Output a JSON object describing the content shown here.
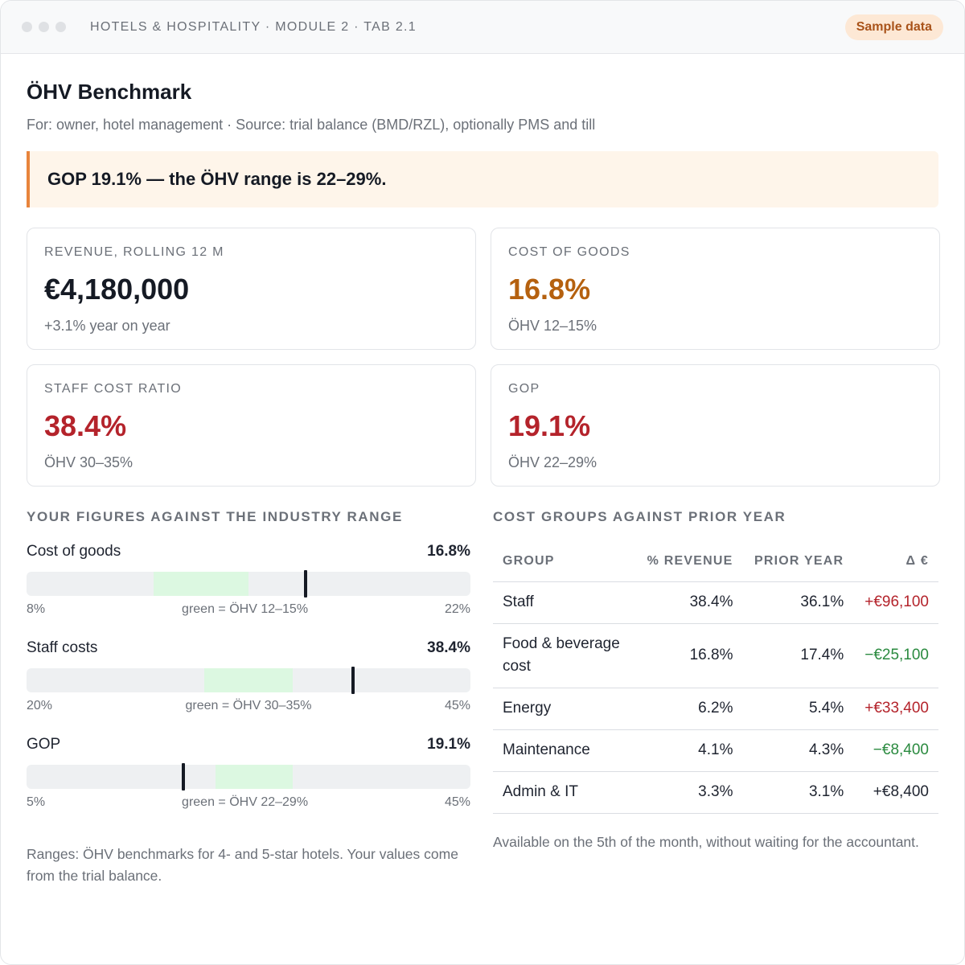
{
  "titlebar": {
    "breadcrumb": "HOTELS & HOSPITALITY · MODULE 2 · TAB 2.1",
    "badge": "Sample data"
  },
  "header": {
    "title": "ÖHV Benchmark",
    "subtitle": "For: owner, hotel management · Source: trial balance (BMD/RZL), optionally PMS and till"
  },
  "alert": {
    "text": "GOP 19.1% — the ÖHV range is 22–29%."
  },
  "kpis": [
    {
      "label": "REVENUE, ROLLING 12 M",
      "value": "€4,180,000",
      "note": "+3.1% year on year",
      "color": "#151a24"
    },
    {
      "label": "COST OF GOODS",
      "value": "16.8%",
      "note": "ÖHV 12–15%",
      "color": "#b5610f"
    },
    {
      "label": "STAFF COST RATIO",
      "value": "38.4%",
      "note": "ÖHV 30–35%",
      "color": "#b4232b"
    },
    {
      "label": "GOP",
      "value": "19.1%",
      "note": "ÖHV 22–29%",
      "color": "#b4232b"
    }
  ],
  "ranges": {
    "heading": "YOUR FIGURES AGAINST THE INDUSTRY RANGE",
    "items": [
      {
        "label": "Cost of goods",
        "value_text": "16.8%",
        "value": 16.8,
        "min": 8,
        "max": 22,
        "band": [
          12,
          15
        ],
        "min_label": "8%",
        "max_label": "22%",
        "legend": "green = ÖHV 12–15%"
      },
      {
        "label": "Staff costs",
        "value_text": "38.4%",
        "value": 38.4,
        "min": 20,
        "max": 45,
        "band": [
          30,
          35
        ],
        "min_label": "20%",
        "max_label": "45%",
        "legend": "green = ÖHV 30–35%"
      },
      {
        "label": "GOP",
        "value_text": "19.1%",
        "value": 19.1,
        "min": 5,
        "max": 45,
        "band": [
          22,
          29
        ],
        "min_label": "5%",
        "max_label": "45%",
        "legend": "green = ÖHV 22–29%"
      }
    ],
    "note": "Ranges: ÖHV benchmarks for 4- and 5-star hotels. Your values come from the trial balance."
  },
  "cost_groups": {
    "heading": "COST GROUPS AGAINST PRIOR YEAR",
    "columns": [
      "GROUP",
      "% REVENUE",
      "PRIOR YEAR",
      "Δ €"
    ],
    "rows": [
      {
        "group": "Staff",
        "revenue_pct": "38.4%",
        "prior_year": "36.1%",
        "delta": "+€96,100",
        "tone": "neg"
      },
      {
        "group": "Food & beverage cost",
        "revenue_pct": "16.8%",
        "prior_year": "17.4%",
        "delta": "−€25,100",
        "tone": "pos"
      },
      {
        "group": "Energy",
        "revenue_pct": "6.2%",
        "prior_year": "5.4%",
        "delta": "+€33,400",
        "tone": "neg"
      },
      {
        "group": "Maintenance",
        "revenue_pct": "4.1%",
        "prior_year": "4.3%",
        "delta": "−€8,400",
        "tone": "pos"
      },
      {
        "group": "Admin & IT",
        "revenue_pct": "3.3%",
        "prior_year": "3.1%",
        "delta": "+€8,400",
        "tone": "plain"
      }
    ],
    "note": "Available on the 5th of the month, without waiting for the accountant."
  }
}
